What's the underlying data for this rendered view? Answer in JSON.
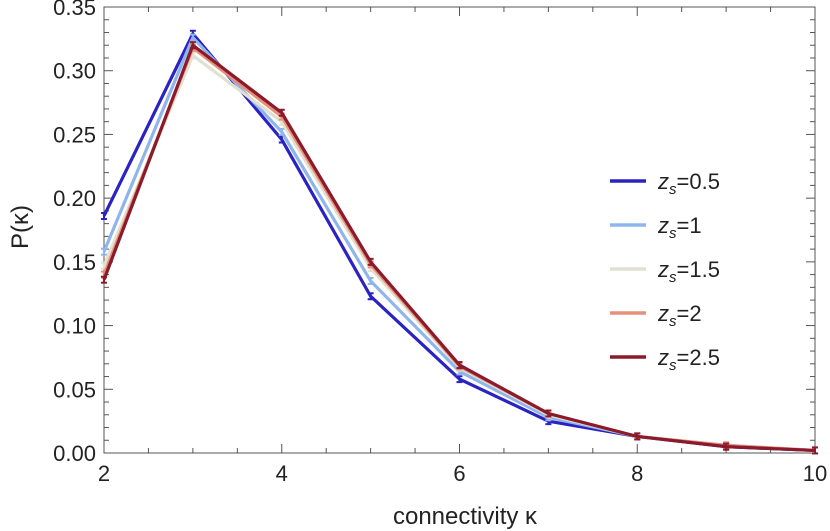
{
  "chart_data": {
    "type": "line",
    "title": "",
    "xlabel": "connectivity κ",
    "ylabel": "P(κ)",
    "xlim": [
      2,
      10
    ],
    "ylim": [
      0,
      0.35
    ],
    "grid": false,
    "legend_position": "right",
    "x_ticks": [
      "2",
      "4",
      "6",
      "8",
      "10"
    ],
    "y_ticks": [
      "0.00",
      "0.05",
      "0.10",
      "0.15",
      "0.20",
      "0.25",
      "0.30",
      "0.35"
    ],
    "x": [
      2,
      3,
      4,
      5,
      6,
      7,
      8,
      9,
      10
    ],
    "series": [
      {
        "name": "zs=0.5",
        "legend_main": "z",
        "legend_sub": "s",
        "legend_value": "=0.5",
        "color": "#2b22c2",
        "values": [
          0.186,
          0.329,
          0.246,
          0.123,
          0.058,
          0.025,
          0.013,
          0.005,
          0.002
        ]
      },
      {
        "name": "zs=1",
        "legend_main": "z",
        "legend_sub": "s",
        "legend_value": "=1",
        "color": "#8fb6ec",
        "values": [
          0.158,
          0.326,
          0.252,
          0.135,
          0.064,
          0.028,
          0.013,
          0.006,
          0.002
        ]
      },
      {
        "name": "zs=1.5",
        "legend_main": "z",
        "legend_sub": "s",
        "legend_value": "=1.5",
        "color": "#e2e0d0",
        "values": [
          0.147,
          0.312,
          0.26,
          0.145,
          0.067,
          0.03,
          0.013,
          0.006,
          0.002
        ]
      },
      {
        "name": "zs=2",
        "legend_main": "z",
        "legend_sub": "s",
        "legend_value": "=2",
        "color": "#e6907a",
        "values": [
          0.14,
          0.318,
          0.264,
          0.148,
          0.068,
          0.031,
          0.013,
          0.006,
          0.002
        ]
      },
      {
        "name": "zs=2.5",
        "legend_main": "z",
        "legend_sub": "s",
        "legend_value": "=2.5",
        "color": "#8b1a2b",
        "values": [
          0.136,
          0.32,
          0.267,
          0.15,
          0.069,
          0.031,
          0.013,
          0.005,
          0.002
        ]
      }
    ]
  }
}
